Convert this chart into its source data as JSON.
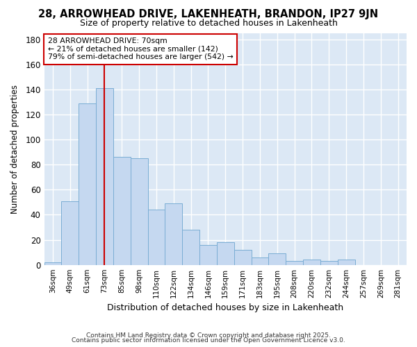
{
  "title1": "28, ARROWHEAD DRIVE, LAKENHEATH, BRANDON, IP27 9JN",
  "title2": "Size of property relative to detached houses in Lakenheath",
  "xlabel": "Distribution of detached houses by size in Lakenheath",
  "ylabel": "Number of detached properties",
  "categories": [
    "36sqm",
    "49sqm",
    "61sqm",
    "73sqm",
    "85sqm",
    "98sqm",
    "110sqm",
    "122sqm",
    "134sqm",
    "146sqm",
    "159sqm",
    "171sqm",
    "183sqm",
    "195sqm",
    "208sqm",
    "220sqm",
    "232sqm",
    "244sqm",
    "257sqm",
    "269sqm",
    "281sqm"
  ],
  "values": [
    2,
    51,
    129,
    141,
    86,
    85,
    44,
    49,
    28,
    16,
    18,
    12,
    6,
    9,
    3,
    4,
    3,
    4,
    0,
    0,
    0
  ],
  "bar_color": "#c5d8f0",
  "bar_edge_color": "#7aadd4",
  "vline_index": 3,
  "vline_color": "#cc0000",
  "annotation_text": "28 ARROWHEAD DRIVE: 70sqm\n← 21% of detached houses are smaller (142)\n79% of semi-detached houses are larger (542) →",
  "annotation_box_color": "#ffffff",
  "annotation_box_edge": "#cc0000",
  "plot_bg_color": "#dce8f5",
  "fig_bg_color": "#ffffff",
  "grid_color": "#ffffff",
  "ylim": [
    0,
    185
  ],
  "yticks": [
    0,
    20,
    40,
    60,
    80,
    100,
    120,
    140,
    160,
    180
  ],
  "title1_fontsize": 10.5,
  "title2_fontsize": 9,
  "footer1": "Contains HM Land Registry data © Crown copyright and database right 2025.",
  "footer2": "Contains public sector information licensed under the Open Government Licence v3.0."
}
